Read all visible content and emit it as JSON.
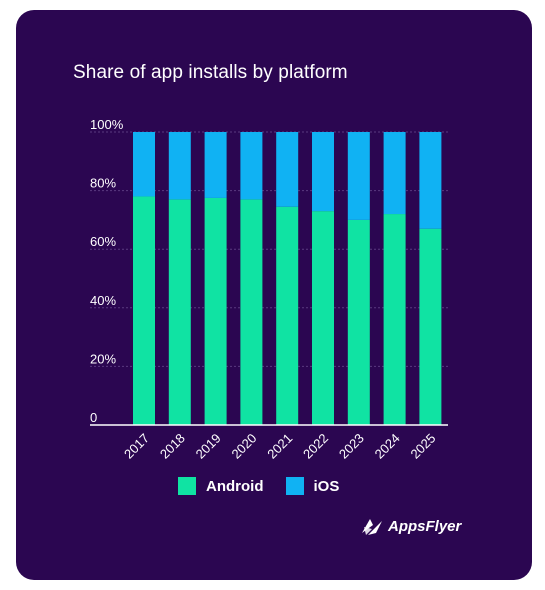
{
  "colors": {
    "background": "#2b0651",
    "android": "#10e3a3",
    "ios": "#10b2f3",
    "text": "#ffffff"
  },
  "logo": {
    "text": "AppsFlyer"
  },
  "chart_data": {
    "type": "bar",
    "stacked": true,
    "title": "Share of app installs by platform",
    "xlabel": "",
    "ylabel": "",
    "ylim": [
      0,
      100
    ],
    "yticks": [
      0,
      20,
      40,
      60,
      80,
      100
    ],
    "ytick_labels": [
      "0",
      "20%",
      "40%",
      "60%",
      "80%",
      "100%"
    ],
    "grid": true,
    "legend_position": "bottom",
    "categories": [
      "2017",
      "2018",
      "2019",
      "2020",
      "2021",
      "2022",
      "2023",
      "2024",
      "2025"
    ],
    "series": [
      {
        "name": "Android",
        "color": "#10e3a3",
        "values": [
          78,
          77,
          77.5,
          77,
          74.5,
          73,
          70,
          72,
          67
        ]
      },
      {
        "name": "iOS",
        "color": "#10b2f3",
        "values": [
          22,
          23,
          22.5,
          23,
          25.5,
          27,
          30,
          28,
          33
        ]
      }
    ]
  }
}
